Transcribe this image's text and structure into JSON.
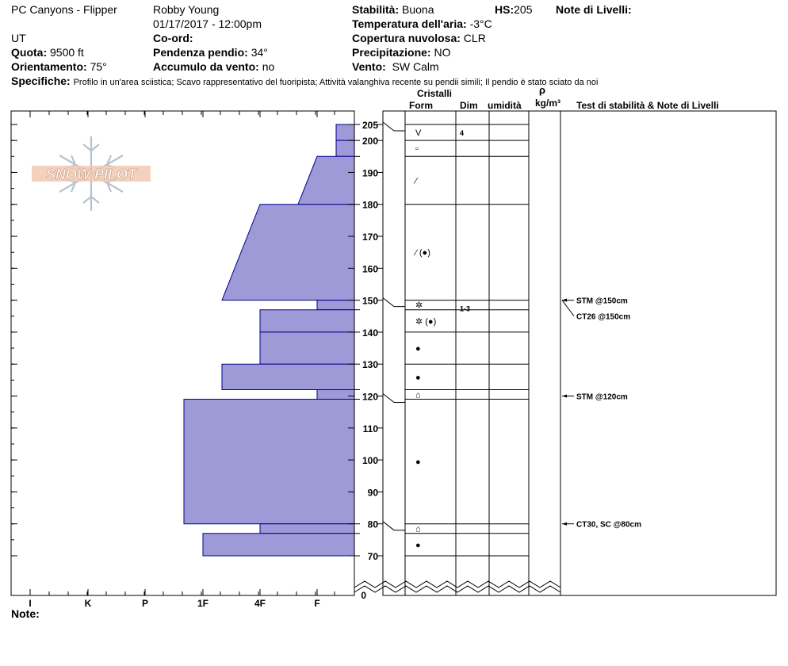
{
  "header": {
    "location": "PC Canyons - Flipper",
    "region": "UT",
    "observer": "Robby Young",
    "datetime": "01/17/2017 - 12:00pm",
    "quota_label": "Quota:",
    "quota_value": "9500 ft",
    "orient_label": "Orientamento:",
    "orient_value": "75°",
    "coord_label": "Co-ord:",
    "slope_label": "Pendenza pendio:",
    "slope_value": "34°",
    "wind_load_label": "Accumulo da vento:",
    "wind_load_value": "no",
    "stability_label": "Stabilità:",
    "stability_value": "Buona",
    "hs_label": "HS:",
    "hs_value": "205",
    "air_temp_label": "Temperatura dell'aria:",
    "air_temp_value": "-3°C",
    "cloud_label": "Copertura nuvolosa:",
    "cloud_value": "CLR",
    "precip_label": "Precipitazione:",
    "precip_value": "NO",
    "wind_label": "Vento:",
    "wind_value": "SW Calm",
    "layer_notes_label": "Note di Livelli:",
    "specifics_label": "Specifiche:",
    "specifics_value": "Profilo in un'area sciistica; Scavo rappresentativo del fuoripista; Attività valanghiva recente su pendii simili; Il pendio è stato sciato da noi"
  },
  "logo_text": "SNOW PILOT",
  "columns": {
    "cristalli": "Cristalli",
    "form": "Form",
    "dim": "Dim",
    "umidita": "umidità",
    "rho": "ρ",
    "kgm3": "kg/m³",
    "tests": "Test di stabilità & Note di Livelli"
  },
  "hardness_ticks": [
    "I",
    "K",
    "P",
    "1F",
    "4F",
    "F"
  ],
  "height_ticks": [
    205,
    200,
    190,
    180,
    170,
    160,
    150,
    140,
    130,
    120,
    110,
    100,
    90,
    80,
    70,
    0
  ],
  "notes_label": "Note:",
  "colors": {
    "layer_fill": "#9e9ad7",
    "layer_stroke": "#00008b"
  },
  "chart_data": {
    "type": "hardness-profile",
    "hardness_scale": [
      "F",
      "4F",
      "1F",
      "P",
      "K",
      "I"
    ],
    "layers": [
      {
        "top": 205,
        "bottom": 200,
        "hardness_top": "F-",
        "hardness_bottom": "F-",
        "form": "V",
        "form_icon": "surface-hoar",
        "dim": "4"
      },
      {
        "top": 200,
        "bottom": 195,
        "hardness_top": "F-",
        "hardness_bottom": "F-",
        "form": "▫",
        "form_icon": "faceted"
      },
      {
        "top": 195,
        "bottom": 180,
        "hardness_top": "F",
        "hardness_bottom": "F+",
        "form": "⁄",
        "form_icon": "decomposing"
      },
      {
        "top": 180,
        "bottom": 150,
        "hardness_top": "4F",
        "hardness_bottom": "1F-",
        "form": "⁄ (●)",
        "form_icon": "decomposing-rounded"
      },
      {
        "top": 150,
        "bottom": 147,
        "hardness_top": "F",
        "hardness_bottom": "F",
        "form": "✲",
        "form_icon": "near-surface-facets",
        "dim": "1-3"
      },
      {
        "top": 147,
        "bottom": 140,
        "hardness_top": "4F",
        "hardness_bottom": "4F",
        "form": "✲ (●)",
        "form_icon": "near-surface-facets-rounded"
      },
      {
        "top": 140,
        "bottom": 130,
        "hardness_top": "4F",
        "hardness_bottom": "4F",
        "form": "●",
        "form_icon": "rounded"
      },
      {
        "top": 130,
        "bottom": 122,
        "hardness_top": "1F-",
        "hardness_bottom": "1F-",
        "form": "●",
        "form_icon": "rounded"
      },
      {
        "top": 122,
        "bottom": 119,
        "hardness_top": "F",
        "hardness_bottom": "F",
        "form": "⌂",
        "form_icon": "mixed-form"
      },
      {
        "top": 119,
        "bottom": 80,
        "hardness_top": "1F+",
        "hardness_bottom": "1F+",
        "form": "●",
        "form_icon": "rounded"
      },
      {
        "top": 80,
        "bottom": 77,
        "hardness_top": "4F",
        "hardness_bottom": "4F",
        "form": "⌂",
        "form_icon": "mixed-form"
      },
      {
        "top": 77,
        "bottom": 70,
        "hardness_top": "1F",
        "hardness_bottom": "1F",
        "form": "●",
        "form_icon": "rounded"
      }
    ],
    "tests": [
      {
        "height": 150,
        "label": "STM @150cm"
      },
      {
        "height": 150,
        "label": "CT26 @150cm"
      },
      {
        "height": 120,
        "label": "STM @120cm"
      },
      {
        "height": 80,
        "label": "CT30, SC @80cm"
      }
    ]
  }
}
